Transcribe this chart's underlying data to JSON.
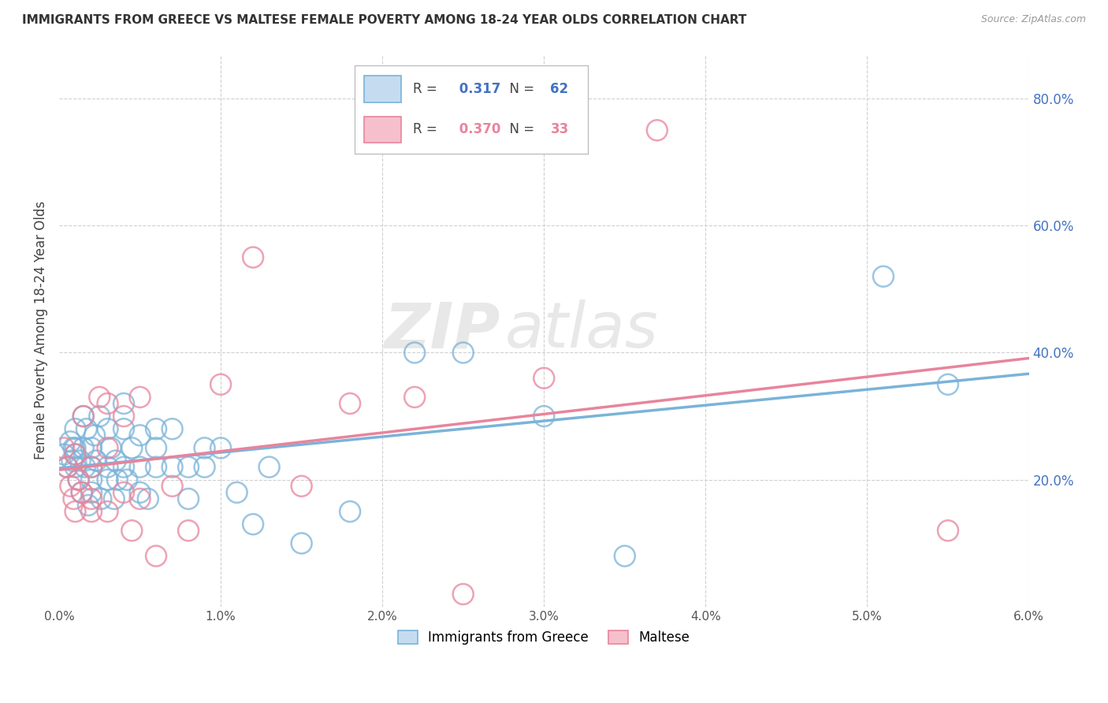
{
  "title": "IMMIGRANTS FROM GREECE VS MALTESE FEMALE POVERTY AMONG 18-24 YEAR OLDS CORRELATION CHART",
  "source": "Source: ZipAtlas.com",
  "ylabel": "Female Poverty Among 18-24 Year Olds",
  "xlim": [
    0.0,
    0.06
  ],
  "ylim": [
    0.0,
    0.87
  ],
  "xtick_labels": [
    "0.0%",
    "",
    "1.0%",
    "",
    "2.0%",
    "",
    "3.0%",
    "",
    "4.0%",
    "",
    "5.0%",
    "",
    "6.0%"
  ],
  "xtick_vals": [
    0.0,
    0.005,
    0.01,
    0.015,
    0.02,
    0.025,
    0.03,
    0.035,
    0.04,
    0.045,
    0.05,
    0.055,
    0.06
  ],
  "ytick_vals": [
    0.2,
    0.4,
    0.6,
    0.8
  ],
  "ytick_labels": [
    "20.0%",
    "40.0%",
    "60.0%",
    "80.0%"
  ],
  "legend_label_greece": "Immigrants from Greece",
  "legend_label_maltese": "Maltese",
  "color_greece": "#7ab3d9",
  "color_maltese": "#e8849c",
  "R_greece": 0.317,
  "N_greece": 62,
  "R_maltese": 0.37,
  "N_maltese": 33,
  "greece_x": [
    0.0003,
    0.0005,
    0.0007,
    0.0008,
    0.0009,
    0.001,
    0.001,
    0.001,
    0.001,
    0.0012,
    0.0013,
    0.0014,
    0.0015,
    0.0015,
    0.0016,
    0.0017,
    0.0018,
    0.002,
    0.002,
    0.002,
    0.002,
    0.0022,
    0.0023,
    0.0025,
    0.0026,
    0.003,
    0.003,
    0.003,
    0.0032,
    0.0034,
    0.0035,
    0.0036,
    0.004,
    0.004,
    0.004,
    0.0042,
    0.0045,
    0.005,
    0.005,
    0.005,
    0.0055,
    0.006,
    0.006,
    0.006,
    0.007,
    0.007,
    0.008,
    0.008,
    0.009,
    0.009,
    0.01,
    0.011,
    0.012,
    0.013,
    0.015,
    0.018,
    0.022,
    0.025,
    0.03,
    0.035,
    0.051,
    0.055
  ],
  "greece_y": [
    0.24,
    0.22,
    0.26,
    0.23,
    0.25,
    0.22,
    0.28,
    0.25,
    0.24,
    0.2,
    0.23,
    0.18,
    0.25,
    0.3,
    0.22,
    0.28,
    0.16,
    0.22,
    0.25,
    0.2,
    0.18,
    0.27,
    0.23,
    0.3,
    0.17,
    0.22,
    0.2,
    0.28,
    0.25,
    0.17,
    0.23,
    0.2,
    0.32,
    0.28,
    0.22,
    0.2,
    0.25,
    0.27,
    0.22,
    0.18,
    0.17,
    0.28,
    0.25,
    0.22,
    0.22,
    0.28,
    0.22,
    0.17,
    0.25,
    0.22,
    0.25,
    0.18,
    0.13,
    0.22,
    0.1,
    0.15,
    0.4,
    0.4,
    0.3,
    0.08,
    0.52,
    0.35
  ],
  "maltese_x": [
    0.0003,
    0.0005,
    0.0007,
    0.0009,
    0.001,
    0.001,
    0.0012,
    0.0014,
    0.0015,
    0.002,
    0.002,
    0.002,
    0.0025,
    0.003,
    0.003,
    0.003,
    0.004,
    0.004,
    0.0045,
    0.005,
    0.005,
    0.006,
    0.007,
    0.008,
    0.01,
    0.012,
    0.015,
    0.018,
    0.022,
    0.025,
    0.03,
    0.037,
    0.055
  ],
  "maltese_y": [
    0.25,
    0.22,
    0.19,
    0.17,
    0.24,
    0.15,
    0.2,
    0.18,
    0.3,
    0.22,
    0.17,
    0.15,
    0.33,
    0.32,
    0.25,
    0.15,
    0.3,
    0.18,
    0.12,
    0.33,
    0.17,
    0.08,
    0.19,
    0.12,
    0.35,
    0.55,
    0.19,
    0.32,
    0.33,
    0.02,
    0.36,
    0.75,
    0.12
  ],
  "watermark_zip": "ZIP",
  "watermark_atlas": "atlas",
  "grid_color": "#d0d0d0",
  "background_color": "#ffffff"
}
